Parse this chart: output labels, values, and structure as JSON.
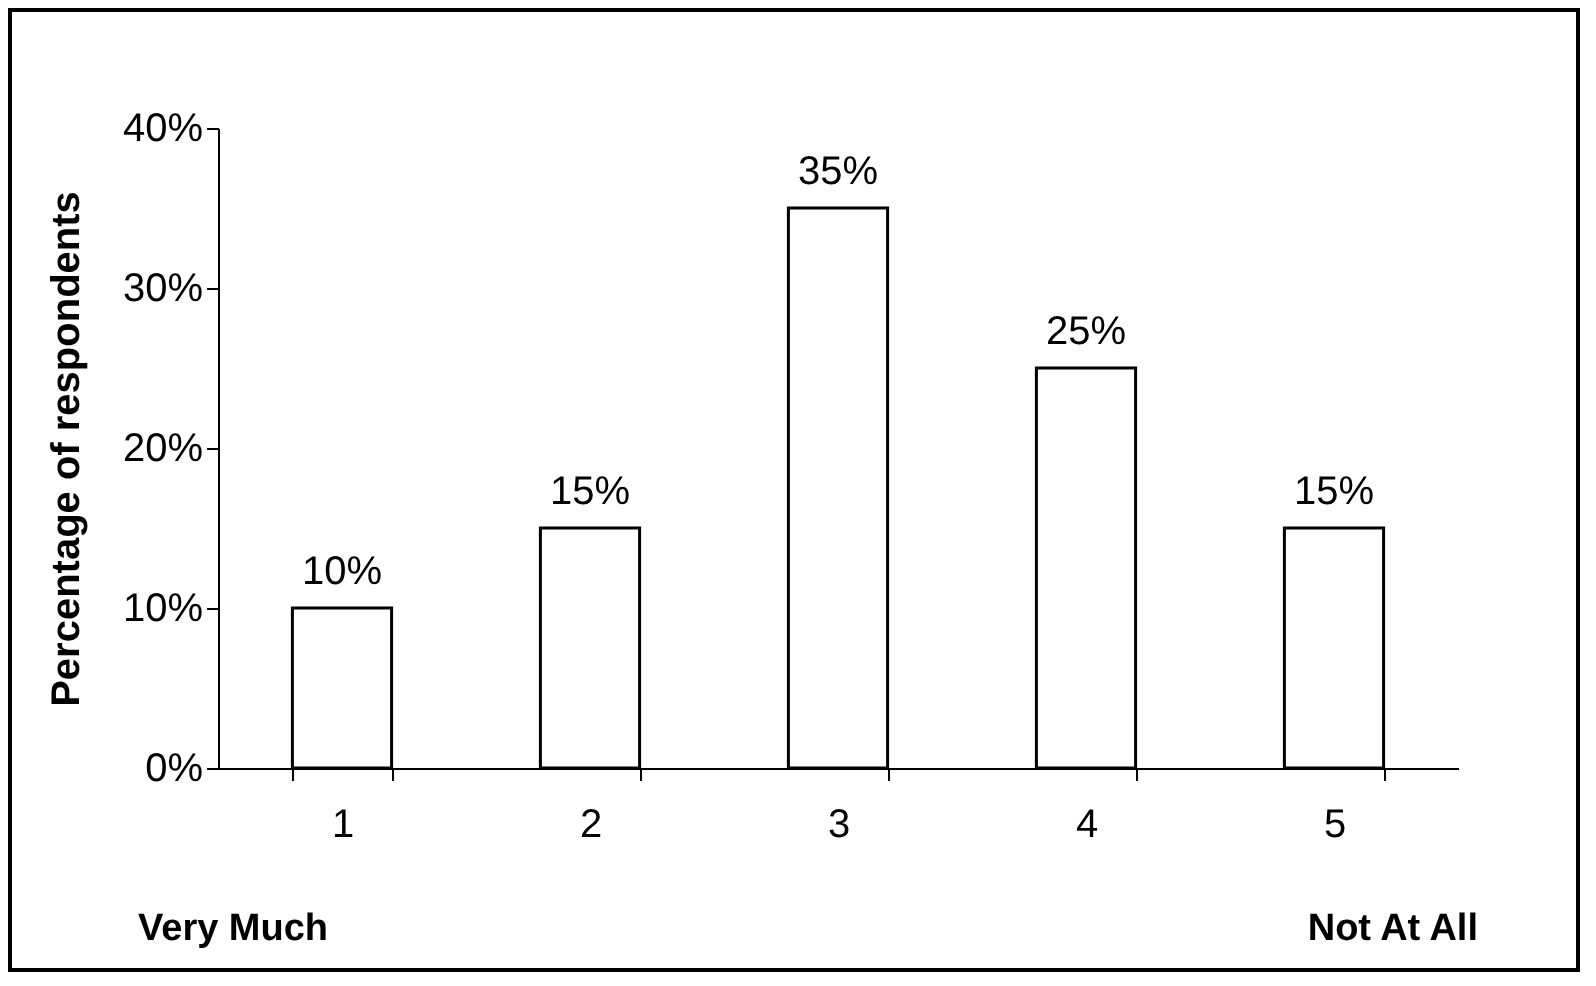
{
  "chart_data": {
    "type": "bar",
    "ylabel": "Percentage of respondents",
    "categories": [
      "1",
      "2",
      "3",
      "4",
      "5"
    ],
    "values": [
      10,
      15,
      35,
      25,
      15
    ],
    "value_labels": [
      "10%",
      "15%",
      "35%",
      "25%",
      "15%"
    ],
    "color": "#ffffff",
    "ylim": [
      0,
      40
    ],
    "yticks": [
      {
        "value": 0,
        "label": "0%"
      },
      {
        "value": 10,
        "label": "10%"
      },
      {
        "value": 20,
        "label": "20%"
      },
      {
        "value": 30,
        "label": "30%"
      },
      {
        "value": 40,
        "label": "40%"
      }
    ],
    "grid": false,
    "annotations": [
      "Very  Much",
      "Not At All"
    ]
  }
}
